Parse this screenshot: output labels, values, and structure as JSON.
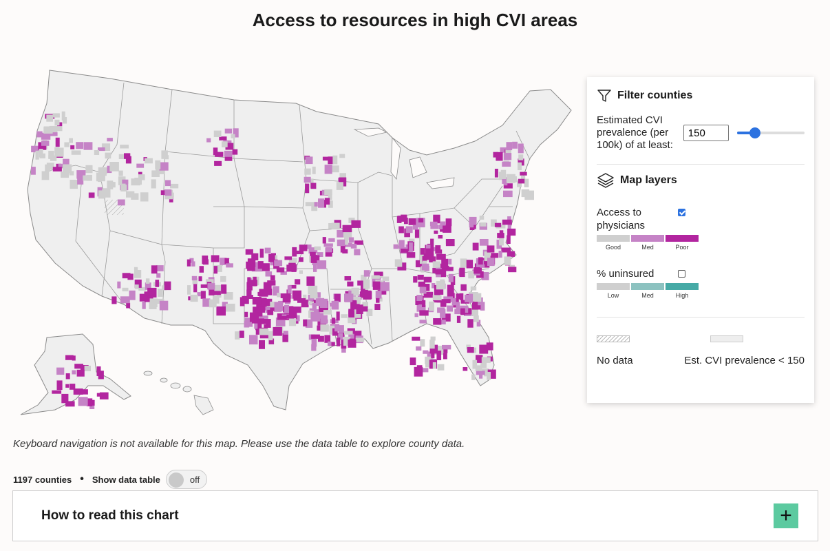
{
  "title": "Access to resources in high CVI areas",
  "filter": {
    "heading": "Filter counties",
    "label": "Estimated CVI prevalence (per 100k) of at least:",
    "value": "150",
    "slider_fraction": 0.27
  },
  "layers": {
    "heading": "Map layers",
    "physicians": {
      "label": "Access to physicians",
      "checked": true,
      "legend": [
        {
          "label": "Good",
          "color": "#cfcfcf"
        },
        {
          "label": "Med",
          "color": "#c583c6"
        },
        {
          "label": "Poor",
          "color": "#b2259f"
        }
      ]
    },
    "uninsured": {
      "label": "% uninsured",
      "checked": false,
      "legend": [
        {
          "label": "Low",
          "color": "#cfcfcf"
        },
        {
          "label": "Med",
          "color": "#8cc2c0"
        },
        {
          "label": "High",
          "color": "#46aaa6"
        }
      ]
    }
  },
  "no_data_label": "No data",
  "low_prevalence_label": "Est. CVI prevalence < 150",
  "map_colors": {
    "land": "#efefef",
    "border": "#8a8a8a",
    "good": "#cfcfcf",
    "med": "#c583c6",
    "poor": "#b2259f"
  },
  "keyboard_note": "Keyboard navigation is not available for this map. Please use the data table to explore county data.",
  "county_count": "1197 counties",
  "show_table_label": "Show data table",
  "toggle_state": "off",
  "how_to_read": "How to read this chart",
  "accent_color": "#5ccaa0"
}
